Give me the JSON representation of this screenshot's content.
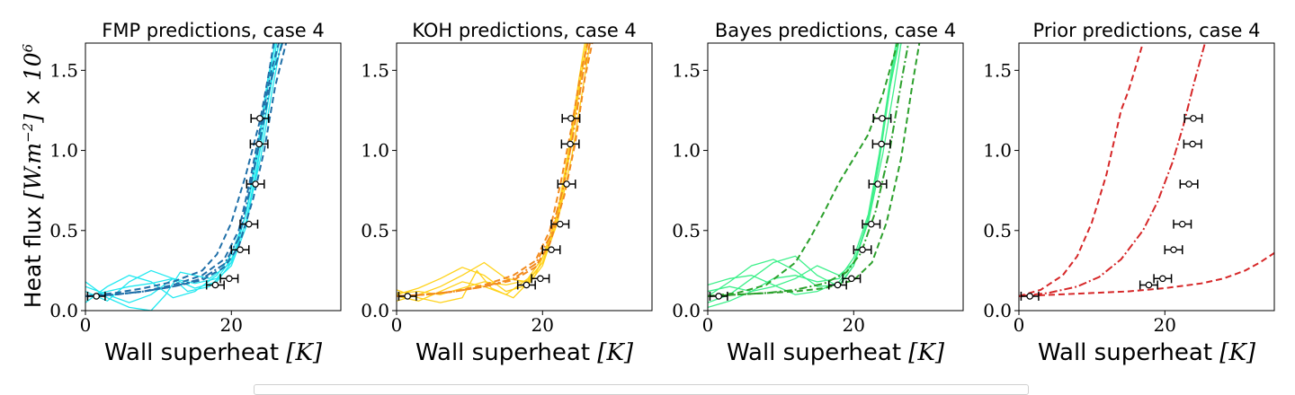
{
  "figure": {
    "ylabel_prefix": "Heat flux ",
    "ylabel_math": "[W.m",
    "ylabel_sup": "−2",
    "ylabel_end": "] × 10",
    "ylabel_exp": "6",
    "xlabel_prefix": "Wall superheat ",
    "xlabel_math": "[K]"
  },
  "chart_data": [
    {
      "type": "line",
      "title": "FMP predictions, case 4",
      "xlabel": "Wall superheat [K]",
      "ylabel": "Heat flux [W.m^-2] × 10^6",
      "xlim": [
        0,
        35
      ],
      "ylim": [
        0,
        1.67
      ],
      "xticks": [
        "0",
        "20"
      ],
      "yticks": [
        "0.0",
        "0.5",
        "1.0",
        "1.5"
      ],
      "grid": false,
      "colors": {
        "samples": "#22e8f0",
        "predictions": "#1f6fa8"
      },
      "observations": {
        "x": [
          1.5,
          17.8,
          19.7,
          21.2,
          22.4,
          23.3,
          23.8,
          23.9
        ],
        "y": [
          0.09,
          0.16,
          0.2,
          0.38,
          0.54,
          0.79,
          1.04,
          1.2
        ],
        "xerr": 1.2
      },
      "series": [
        {
          "style": "dashed",
          "x": [
            0,
            4,
            8,
            12,
            16,
            19,
            21,
            23,
            24.5,
            26,
            27.5
          ],
          "y": [
            0.09,
            0.1,
            0.12,
            0.15,
            0.19,
            0.27,
            0.4,
            0.7,
            1.0,
            1.4,
            1.67
          ]
        },
        {
          "style": "dashed",
          "x": [
            0,
            4,
            8,
            12,
            16,
            19,
            21,
            22.5,
            24,
            25.5,
            26.5
          ],
          "y": [
            0.09,
            0.1,
            0.12,
            0.16,
            0.22,
            0.32,
            0.5,
            0.8,
            1.15,
            1.5,
            1.67
          ]
        },
        {
          "style": "dashdot",
          "x": [
            0,
            4,
            8,
            12,
            16,
            19,
            21,
            22.5,
            24,
            25.5,
            27
          ],
          "y": [
            0.09,
            0.1,
            0.12,
            0.15,
            0.2,
            0.29,
            0.45,
            0.75,
            1.08,
            1.45,
            1.67
          ]
        },
        {
          "style": "dashed",
          "x": [
            0,
            4,
            8,
            12,
            16,
            18,
            20,
            22,
            24,
            25.2,
            25.8
          ],
          "y": [
            0.09,
            0.11,
            0.14,
            0.18,
            0.25,
            0.35,
            0.55,
            0.85,
            1.2,
            1.5,
            1.67
          ]
        },
        {
          "style": "solid",
          "x": [
            0,
            3,
            6,
            9,
            12,
            15,
            18,
            20,
            22,
            23.5,
            25,
            26.5
          ],
          "y": [
            0.12,
            0.06,
            0.18,
            0.25,
            0.2,
            0.14,
            0.18,
            0.3,
            0.55,
            0.9,
            1.3,
            1.67
          ]
        },
        {
          "style": "solid",
          "x": [
            0,
            3,
            6,
            9,
            12,
            15,
            18,
            20,
            22,
            23.5,
            25,
            26
          ],
          "y": [
            0.05,
            0.15,
            0.22,
            0.18,
            0.08,
            0.12,
            0.22,
            0.35,
            0.6,
            0.95,
            1.4,
            1.67
          ]
        },
        {
          "style": "solid",
          "x": [
            0,
            3,
            6,
            9,
            12,
            14,
            17,
            20,
            22,
            23.5,
            25,
            26.2
          ],
          "y": [
            0.15,
            0.1,
            0.05,
            0.1,
            0.2,
            0.12,
            0.15,
            0.28,
            0.52,
            0.88,
            1.3,
            1.67
          ]
        },
        {
          "style": "solid",
          "x": [
            0,
            3,
            6,
            9,
            12,
            15,
            18,
            20,
            22,
            24,
            25.5,
            26.8
          ],
          "y": [
            0.09,
            0.12,
            0.15,
            0.17,
            0.2,
            0.17,
            0.2,
            0.32,
            0.55,
            0.95,
            1.35,
            1.67
          ]
        },
        {
          "style": "solid",
          "x": [
            0,
            3,
            6,
            9,
            11,
            13,
            17,
            20,
            22,
            23.5,
            25,
            26
          ],
          "y": [
            0.18,
            0.08,
            0.02,
            0.0,
            0.1,
            0.24,
            0.2,
            0.3,
            0.6,
            1.0,
            1.45,
            1.67
          ]
        }
      ]
    },
    {
      "type": "line",
      "title": "KOH predictions, case 4",
      "xlabel": "Wall superheat [K]",
      "ylabel": "Heat flux [W.m^-2] × 10^6",
      "xlim": [
        0,
        35
      ],
      "ylim": [
        0,
        1.67
      ],
      "xticks": [
        "0",
        "20"
      ],
      "yticks": [
        "0.0",
        "0.5",
        "1.0",
        "1.5"
      ],
      "grid": false,
      "colors": {
        "samples": "#ffd21a",
        "predictions": "#f28a1e"
      },
      "observations": {
        "x": [
          1.5,
          17.8,
          19.7,
          21.2,
          22.4,
          23.3,
          23.8,
          23.9
        ],
        "y": [
          0.09,
          0.16,
          0.2,
          0.38,
          0.54,
          0.79,
          1.04,
          1.2
        ],
        "xerr": 1.2
      },
      "series": [
        {
          "style": "dashed",
          "x": [
            0,
            4,
            8,
            12,
            16,
            19,
            21,
            23,
            24.5,
            25.8,
            26.8
          ],
          "y": [
            0.09,
            0.1,
            0.12,
            0.15,
            0.19,
            0.27,
            0.42,
            0.72,
            1.05,
            1.45,
            1.67
          ]
        },
        {
          "style": "dashed",
          "x": [
            0,
            4,
            8,
            12,
            16,
            19,
            21,
            22.5,
            24,
            25.3,
            26.2
          ],
          "y": [
            0.09,
            0.1,
            0.12,
            0.16,
            0.22,
            0.31,
            0.5,
            0.8,
            1.15,
            1.5,
            1.67
          ]
        },
        {
          "style": "dashdot",
          "x": [
            0,
            4,
            8,
            12,
            16,
            19,
            21,
            22.8,
            24.2,
            25.5,
            26.5
          ],
          "y": [
            0.09,
            0.1,
            0.12,
            0.15,
            0.2,
            0.29,
            0.46,
            0.76,
            1.1,
            1.47,
            1.67
          ]
        },
        {
          "style": "solid",
          "x": [
            0,
            3,
            6,
            9,
            12,
            15,
            18,
            20,
            22,
            23.5,
            25,
            26
          ],
          "y": [
            0.1,
            0.14,
            0.2,
            0.27,
            0.22,
            0.12,
            0.16,
            0.28,
            0.55,
            0.92,
            1.4,
            1.67
          ]
        },
        {
          "style": "solid",
          "x": [
            0,
            3,
            6,
            9,
            12,
            15,
            18,
            20,
            22,
            23.5,
            25,
            26.2
          ],
          "y": [
            0.06,
            0.1,
            0.15,
            0.22,
            0.3,
            0.2,
            0.18,
            0.3,
            0.58,
            0.95,
            1.4,
            1.67
          ]
        },
        {
          "style": "solid",
          "x": [
            0,
            3,
            6,
            9,
            11,
            13,
            16,
            19,
            21.5,
            23.5,
            25,
            26
          ],
          "y": [
            0.13,
            0.08,
            0.05,
            0.08,
            0.25,
            0.14,
            0.08,
            0.22,
            0.5,
            0.92,
            1.38,
            1.67
          ]
        },
        {
          "style": "solid",
          "x": [
            0,
            3,
            6,
            9,
            12,
            15,
            18,
            20,
            22,
            23.5,
            25,
            25.8
          ],
          "y": [
            0.09,
            0.06,
            0.12,
            0.18,
            0.15,
            0.1,
            0.2,
            0.33,
            0.6,
            0.98,
            1.45,
            1.67
          ]
        },
        {
          "style": "solid",
          "x": [
            0,
            3,
            6,
            9,
            12,
            15,
            18,
            20,
            22,
            24,
            25.5,
            26.5
          ],
          "y": [
            0.11,
            0.12,
            0.1,
            0.14,
            0.18,
            0.16,
            0.19,
            0.3,
            0.54,
            0.96,
            1.38,
            1.67
          ]
        }
      ]
    },
    {
      "type": "line",
      "title": "Bayes predictions, case 4",
      "xlabel": "Wall superheat [K]",
      "ylabel": "Heat flux [W.m^-2] × 10^6",
      "xlim": [
        0,
        35
      ],
      "ylim": [
        0,
        1.67
      ],
      "xticks": [
        "0",
        "20"
      ],
      "yticks": [
        "0.0",
        "0.5",
        "1.0",
        "1.5"
      ],
      "grid": false,
      "colors": {
        "samples": "#3df08a",
        "predictions": "#2ca02c"
      },
      "observations": {
        "x": [
          1.5,
          17.8,
          19.7,
          21.2,
          22.4,
          23.3,
          23.8,
          23.9
        ],
        "y": [
          0.09,
          0.16,
          0.2,
          0.38,
          0.54,
          0.79,
          1.04,
          1.2
        ],
        "xerr": 1.2
      },
      "series": [
        {
          "style": "dashed",
          "x": [
            0,
            4,
            8,
            12,
            14,
            16,
            18,
            20,
            22,
            24,
            26
          ],
          "y": [
            0.09,
            0.11,
            0.16,
            0.3,
            0.45,
            0.62,
            0.8,
            0.95,
            1.1,
            1.35,
            1.67
          ]
        },
        {
          "style": "dashdot",
          "x": [
            0,
            4,
            8,
            12,
            16,
            19,
            21,
            23,
            25,
            26.5,
            27.5
          ],
          "y": [
            0.09,
            0.1,
            0.11,
            0.13,
            0.17,
            0.24,
            0.36,
            0.62,
            1.02,
            1.42,
            1.67
          ]
        },
        {
          "style": "dashed",
          "x": [
            0,
            4,
            8,
            12,
            16,
            20,
            22.5,
            24.5,
            26.5,
            28,
            29
          ],
          "y": [
            0.09,
            0.1,
            0.11,
            0.12,
            0.14,
            0.19,
            0.3,
            0.55,
            0.95,
            1.4,
            1.67
          ]
        },
        {
          "style": "solid",
          "x": [
            0,
            3,
            6,
            9,
            12,
            15,
            18,
            20,
            22,
            23.5,
            25,
            26
          ],
          "y": [
            0.09,
            0.18,
            0.28,
            0.32,
            0.25,
            0.15,
            0.16,
            0.28,
            0.58,
            0.96,
            1.42,
            1.67
          ]
        },
        {
          "style": "solid",
          "x": [
            0,
            3,
            6,
            9,
            12,
            15,
            18,
            20,
            22,
            23.5,
            25,
            26.2
          ],
          "y": [
            0.05,
            0.1,
            0.2,
            0.3,
            0.34,
            0.22,
            0.15,
            0.28,
            0.56,
            0.93,
            1.4,
            1.67
          ]
        },
        {
          "style": "solid",
          "x": [
            0,
            3,
            6,
            9,
            12,
            15,
            18,
            20,
            22,
            24,
            25.5,
            26.5
          ],
          "y": [
            0.12,
            0.15,
            0.12,
            0.15,
            0.2,
            0.28,
            0.22,
            0.3,
            0.55,
            0.98,
            1.38,
            1.67
          ]
        },
        {
          "style": "solid",
          "x": [
            0,
            3,
            6,
            9,
            12,
            15,
            18,
            20,
            22,
            23.5,
            25,
            25.8
          ],
          "y": [
            0.02,
            0.06,
            0.12,
            0.2,
            0.22,
            0.18,
            0.2,
            0.33,
            0.6,
            0.98,
            1.45,
            1.67
          ]
        },
        {
          "style": "solid",
          "x": [
            0,
            3,
            6,
            9,
            12,
            15,
            18,
            20,
            22,
            23.5,
            25,
            26
          ],
          "y": [
            0.16,
            0.2,
            0.22,
            0.16,
            0.1,
            0.12,
            0.18,
            0.3,
            0.57,
            0.95,
            1.4,
            1.67
          ]
        }
      ]
    },
    {
      "type": "line",
      "title": "Prior predictions, case 4",
      "xlabel": "Wall superheat [K]",
      "ylabel": "Heat flux [W.m^-2] × 10^6",
      "xlim": [
        0,
        35
      ],
      "ylim": [
        0,
        1.67
      ],
      "xticks": [
        "0",
        "20"
      ],
      "yticks": [
        "0.0",
        "0.5",
        "1.0",
        "1.5"
      ],
      "grid": false,
      "colors": {
        "samples": "#d62728",
        "predictions": "#d62728"
      },
      "observations": {
        "x": [
          1.5,
          17.8,
          19.7,
          21.2,
          22.4,
          23.3,
          23.8,
          23.9
        ],
        "y": [
          0.09,
          0.16,
          0.2,
          0.38,
          0.54,
          0.79,
          1.04,
          1.2
        ],
        "xerr": 1.2
      },
      "series": [
        {
          "style": "dashed",
          "x": [
            0,
            3,
            6,
            8,
            10,
            12,
            13,
            14,
            15,
            16,
            17
          ],
          "y": [
            0.09,
            0.13,
            0.22,
            0.34,
            0.55,
            0.85,
            1.05,
            1.25,
            1.37,
            1.52,
            1.67
          ]
        },
        {
          "style": "dashdot",
          "x": [
            0,
            4,
            8,
            11,
            14,
            17,
            19,
            21,
            22.5,
            24,
            25.5
          ],
          "y": [
            0.09,
            0.11,
            0.15,
            0.21,
            0.32,
            0.5,
            0.68,
            0.92,
            1.15,
            1.42,
            1.67
          ]
        },
        {
          "style": "dashed",
          "x": [
            0,
            5,
            10,
            15,
            20,
            25,
            28,
            31,
            33,
            35
          ],
          "y": [
            0.09,
            0.1,
            0.11,
            0.12,
            0.14,
            0.17,
            0.2,
            0.25,
            0.3,
            0.36
          ]
        }
      ]
    }
  ]
}
